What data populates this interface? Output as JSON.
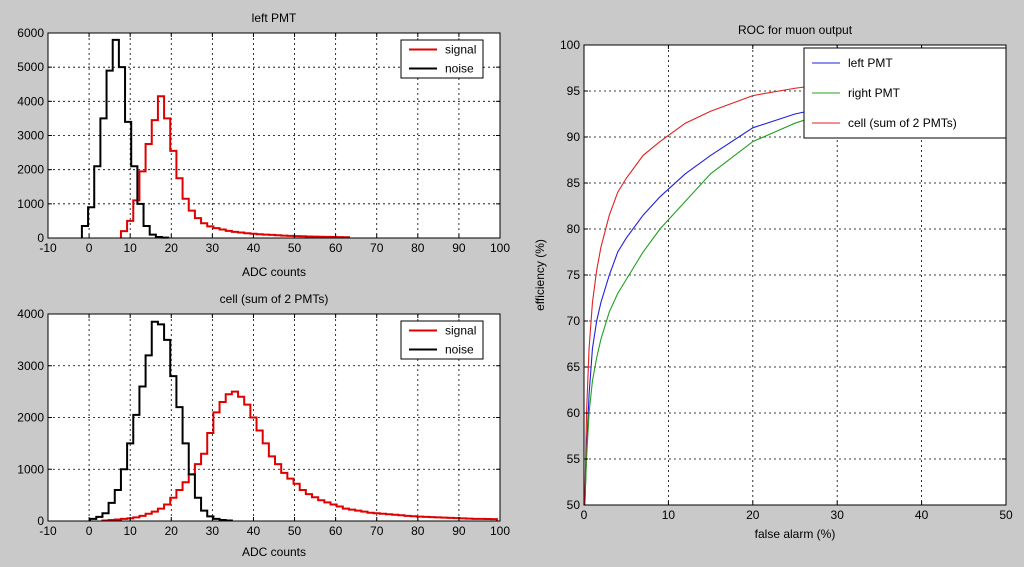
{
  "figure": {
    "background": "#c9c9c9"
  },
  "chart_data": [
    {
      "type": "histogram",
      "title": "left PMT",
      "xlabel": "ADC counts",
      "ylabel": "",
      "xlim": [
        -10,
        100
      ],
      "ylim": [
        0,
        6000
      ],
      "xticks": [
        -10,
        0,
        10,
        20,
        30,
        40,
        50,
        60,
        70,
        80,
        90,
        100
      ],
      "yticks": [
        0,
        1000,
        2000,
        3000,
        4000,
        5000,
        6000
      ],
      "bin_width": 1.5,
      "grid": true,
      "legend": "top-right",
      "series": [
        {
          "name": "signal",
          "color": "#e00000",
          "x": [
            8.5,
            10,
            11.5,
            13,
            14.5,
            16,
            17.5,
            19,
            20.5,
            22,
            23.5,
            25,
            26.5,
            28,
            29.5,
            31,
            32.5,
            34,
            35.5,
            37,
            38.5,
            40,
            41.5,
            43,
            44.5,
            46,
            47.5,
            49,
            50.5,
            52,
            53.5,
            55,
            56.5,
            58,
            59.5,
            61,
            62.5
          ],
          "y": [
            200,
            500,
            1100,
            1950,
            2750,
            3450,
            4150,
            3500,
            2550,
            1750,
            1150,
            800,
            580,
            430,
            340,
            290,
            250,
            210,
            180,
            160,
            140,
            125,
            110,
            100,
            90,
            80,
            70,
            62,
            55,
            50,
            45,
            40,
            36,
            32,
            28,
            25,
            22
          ]
        },
        {
          "name": "noise",
          "color": "#000000",
          "x": [
            -1,
            0.5,
            2,
            3.5,
            5,
            6.5,
            8,
            9.5,
            11,
            12.5,
            14,
            15.5,
            17,
            18.5
          ],
          "y": [
            350,
            900,
            2100,
            3500,
            4900,
            5800,
            5000,
            3400,
            2100,
            1000,
            350,
            100,
            30,
            10
          ]
        }
      ]
    },
    {
      "type": "histogram",
      "title": "cell (sum of 2 PMTs)",
      "xlabel": "ADC counts",
      "ylabel": "",
      "xlim": [
        -10,
        100
      ],
      "ylim": [
        0,
        4000
      ],
      "xticks": [
        -10,
        0,
        10,
        20,
        30,
        40,
        50,
        60,
        70,
        80,
        90,
        100
      ],
      "yticks": [
        0,
        1000,
        2000,
        3000,
        4000
      ],
      "bin_width": 1.5,
      "grid": true,
      "legend": "top-right",
      "series": [
        {
          "name": "signal",
          "color": "#e00000",
          "x": [
            4,
            5.5,
            7,
            8.5,
            10,
            11.5,
            13,
            14.5,
            16,
            17.5,
            19,
            20.5,
            22,
            23.5,
            25,
            26.5,
            28,
            29.5,
            31,
            32.5,
            34,
            35.5,
            37,
            38.5,
            40,
            41.5,
            43,
            44.5,
            46,
            47.5,
            49,
            50.5,
            52,
            53.5,
            55,
            56.5,
            58,
            59.5,
            61,
            62.5,
            64,
            65.5,
            67,
            68.5,
            70,
            71.5,
            73,
            74.5,
            76,
            77.5,
            79,
            80.5,
            82,
            83.5,
            85,
            86.5,
            88,
            89.5,
            91,
            92.5,
            94,
            95.5,
            97,
            98.5
          ],
          "y": [
            10,
            20,
            30,
            40,
            50,
            70,
            100,
            140,
            180,
            240,
            320,
            450,
            600,
            750,
            900,
            1100,
            1300,
            1700,
            2100,
            2300,
            2450,
            2500,
            2400,
            2250,
            2000,
            1750,
            1500,
            1250,
            1100,
            930,
            820,
            720,
            600,
            520,
            460,
            400,
            360,
            320,
            280,
            240,
            220,
            200,
            180,
            160,
            150,
            140,
            130,
            120,
            110,
            100,
            92,
            85,
            80,
            75,
            70,
            65,
            60,
            55,
            50,
            45,
            42,
            40,
            38,
            36
          ]
        },
        {
          "name": "noise",
          "color": "#000000",
          "x": [
            1,
            2.5,
            4,
            5.5,
            7,
            8.5,
            10,
            11.5,
            13,
            14.5,
            16,
            17.5,
            19,
            20.5,
            22,
            23.5,
            25,
            26.5,
            28,
            29.5,
            31,
            32.5,
            34
          ],
          "y": [
            40,
            80,
            150,
            350,
            600,
            1000,
            1500,
            2050,
            2600,
            3200,
            3850,
            3800,
            3500,
            2800,
            2200,
            1500,
            900,
            450,
            200,
            90,
            40,
            20,
            10
          ]
        }
      ]
    },
    {
      "type": "line",
      "title": "ROC for muon output",
      "xlabel": "false alarm (%)",
      "ylabel": "efficiency (%)",
      "xlim": [
        0,
        50
      ],
      "ylim": [
        50,
        100
      ],
      "xticks": [
        0,
        10,
        20,
        30,
        40,
        50
      ],
      "yticks": [
        50,
        55,
        60,
        65,
        70,
        75,
        80,
        85,
        90,
        95,
        100
      ],
      "grid": true,
      "legend": "top-right",
      "series": [
        {
          "name": "left PMT",
          "color": "#1f1fe0",
          "x": [
            0.1,
            0.3,
            0.6,
            1,
            1.5,
            2,
            3,
            4,
            5,
            7,
            9,
            12,
            15,
            20,
            25,
            30,
            35,
            40,
            45,
            50
          ],
          "y": [
            50,
            56,
            62,
            67,
            70,
            72,
            75,
            77.5,
            79,
            81.5,
            83.5,
            86,
            88,
            91,
            92.5,
            93.5,
            94.5,
            95.5,
            96.5,
            97.5
          ]
        },
        {
          "name": "right PMT",
          "color": "#20a020",
          "x": [
            0.1,
            0.3,
            0.6,
            1,
            1.5,
            2,
            3,
            4,
            5,
            7,
            9,
            12,
            15,
            20,
            25,
            30,
            35,
            40,
            45,
            50
          ],
          "y": [
            50,
            55,
            60,
            63.5,
            66,
            68,
            71,
            73,
            74.5,
            77.5,
            80,
            83,
            86,
            89.5,
            91.5,
            93,
            94.5,
            95.5,
            96.5,
            97.5
          ]
        },
        {
          "name": "cell (sum of 2 PMTs)",
          "color": "#e02020",
          "x": [
            0.1,
            0.3,
            0.6,
            1,
            1.5,
            2,
            3,
            4,
            5,
            7,
            9,
            12,
            15,
            20,
            25,
            30,
            35,
            40,
            45,
            50
          ],
          "y": [
            50,
            60,
            67,
            72,
            75.5,
            78,
            81.5,
            84,
            85.5,
            88,
            89.5,
            91.5,
            92.8,
            94.5,
            95.3,
            95.9,
            96.4,
            96.8,
            97.2,
            97.5
          ]
        }
      ]
    }
  ]
}
